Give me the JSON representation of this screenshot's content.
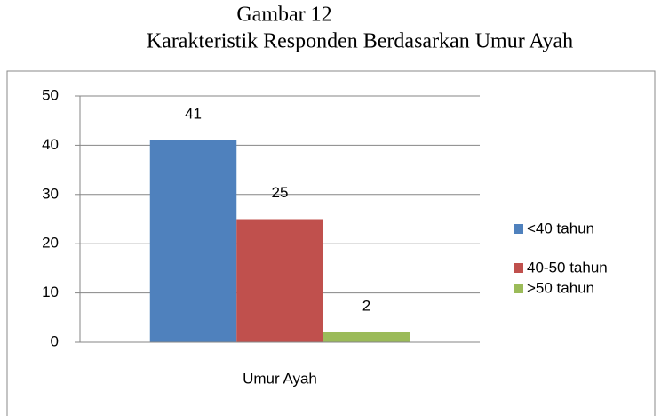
{
  "chart_data": {
    "type": "bar",
    "title": "Gambar 12",
    "subtitle": "Karakteristik Responden Berdasarkan Umur Ayah",
    "categories": [
      "Umur Ayah"
    ],
    "series": [
      {
        "name": "<40 tahun",
        "color": "#4f81bd",
        "values": [
          41
        ]
      },
      {
        "name": "40-50 tahun",
        "color": "#c0504d",
        "values": [
          25
        ]
      },
      {
        "name": ">50 tahun",
        "color": "#9bbb59",
        "values": [
          2
        ]
      }
    ],
    "ylim": [
      0,
      50
    ],
    "yticks": [
      0,
      10,
      20,
      30,
      40,
      50
    ],
    "grid": true,
    "legend": "right"
  }
}
